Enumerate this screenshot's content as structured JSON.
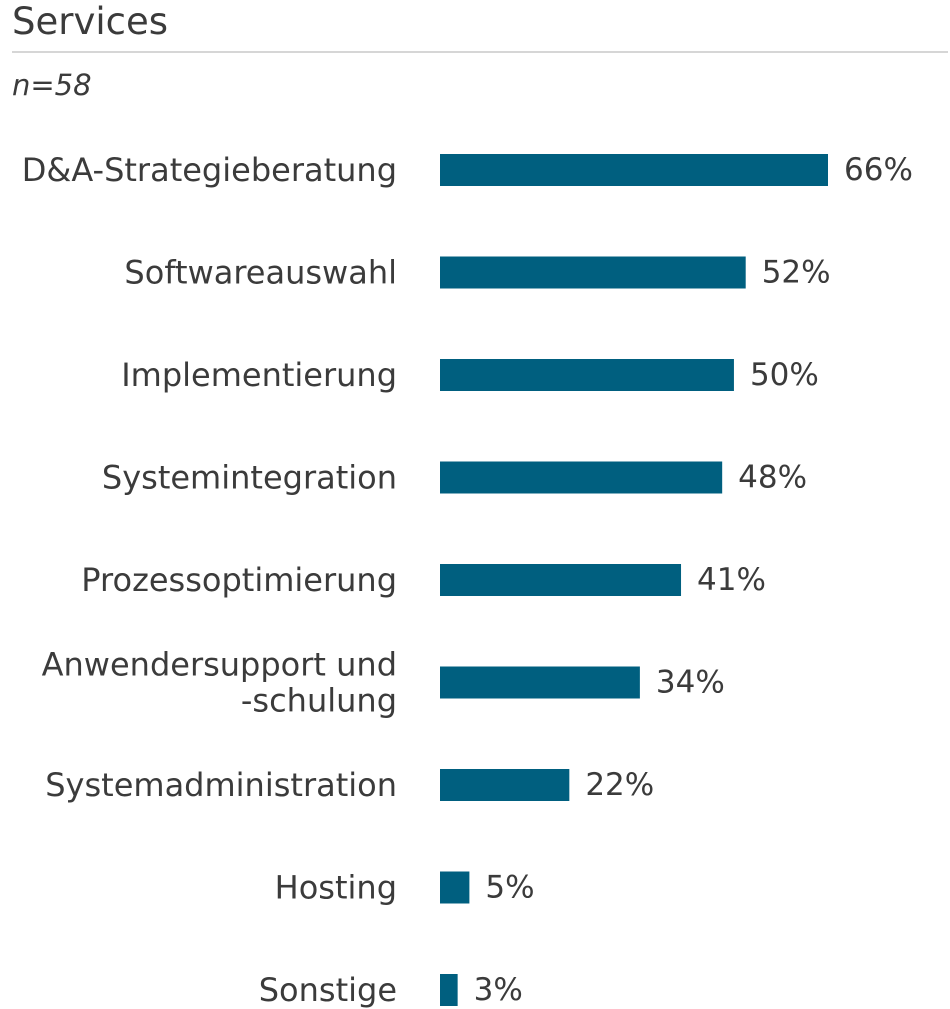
{
  "chart_data": {
    "type": "bar",
    "orientation": "horizontal",
    "title": "Services",
    "subtitle": "n=58",
    "categories": [
      [
        "D&A-Strategieberatung"
      ],
      [
        "Softwareauswahl"
      ],
      [
        "Implementierung"
      ],
      [
        "Systemintegration"
      ],
      [
        "Prozessoptimierung"
      ],
      [
        "Anwendersupport und",
        "-schulung"
      ],
      [
        "Systemadministration"
      ],
      [
        "Hosting"
      ],
      [
        "Sonstige"
      ]
    ],
    "values": [
      66,
      52,
      50,
      48,
      41,
      34,
      22,
      5,
      3
    ],
    "value_labels": [
      "66%",
      "52%",
      "50%",
      "48%",
      "41%",
      "34%",
      "22%",
      "5%",
      "3%"
    ],
    "unit": "%",
    "xlim": [
      0,
      100
    ],
    "grid": false,
    "bar_color": "#005f7f"
  }
}
